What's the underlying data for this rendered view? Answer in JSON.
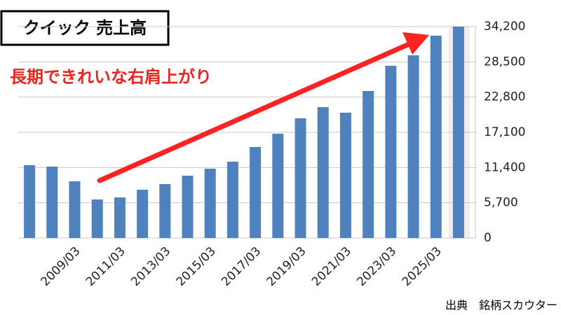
{
  "chart_data": {
    "type": "bar",
    "title": "クイック 売上高",
    "annotation": "長期できれいな右肩上がり",
    "source": "出典　銘柄スカウター",
    "categories": [
      null,
      null,
      "2009/03",
      null,
      "2011/03",
      null,
      "2013/03",
      null,
      "2015/03",
      null,
      "2017/03",
      null,
      "2019/03",
      null,
      "2021/03",
      null,
      "2023/03",
      null,
      "2025/03",
      null
    ],
    "values": [
      11780,
      11550,
      9170,
      6230,
      6560,
      7810,
      8720,
      10080,
      11210,
      12340,
      14720,
      16870,
      19360,
      21170,
      20270,
      23780,
      27860,
      29560,
      32730,
      34200
    ],
    "color": "#4f81bd",
    "ylim": [
      0,
      34200
    ],
    "yticks": [
      0,
      {
        "value": 5700,
        "label": "5,700"
      },
      {
        "value": 11400,
        "label": "11,400"
      },
      {
        "value": 17100,
        "label": "17,100"
      },
      {
        "value": 22800,
        "label": "22,800"
      },
      {
        "value": 28500,
        "label": "28,500"
      },
      {
        "value": 34200,
        "label": "34,200"
      }
    ],
    "grid": true
  }
}
